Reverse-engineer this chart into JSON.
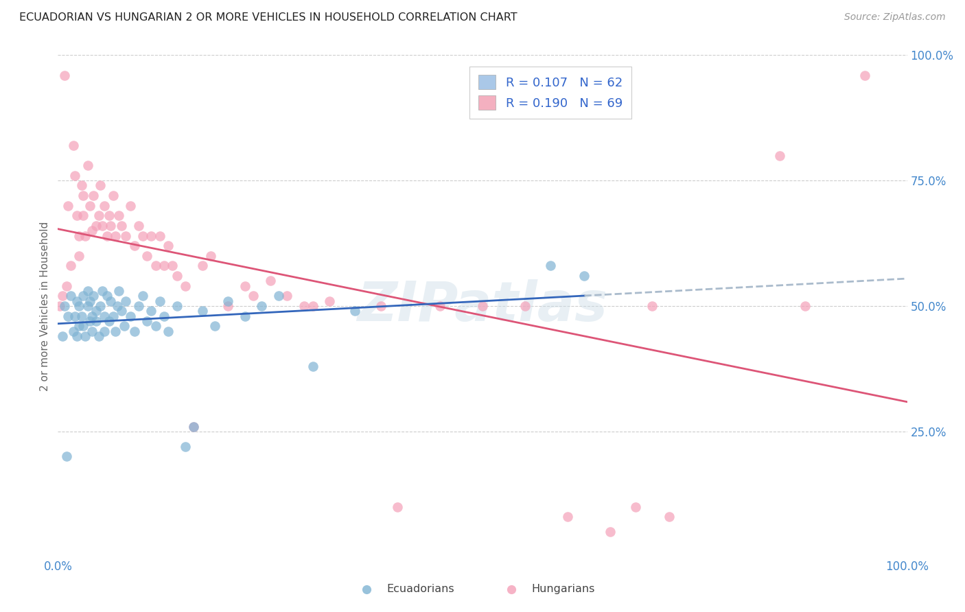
{
  "title": "ECUADORIAN VS HUNGARIAN 2 OR MORE VEHICLES IN HOUSEHOLD CORRELATION CHART",
  "source": "Source: ZipAtlas.com",
  "ylabel": "2 or more Vehicles in Household",
  "watermark": "ZIPatlas",
  "xlim": [
    0,
    1
  ],
  "ylim": [
    0,
    1
  ],
  "ytick_values": [
    0.0,
    0.25,
    0.5,
    0.75,
    1.0
  ],
  "ytick_labels": [
    "",
    "25.0%",
    "50.0%",
    "75.0%",
    "100.0%"
  ],
  "ecuadorian_color": "#7fb3d3",
  "hungarian_color": "#f4a0b8",
  "regression_blue_solid": "#3366bb",
  "regression_blue_dashed": "#aabbcc",
  "regression_pink_solid": "#dd5577",
  "grid_color": "#cccccc",
  "background_color": "#ffffff",
  "legend_blue_face": "#aac8e8",
  "legend_pink_face": "#f4b0c0",
  "legend_text_color": "#3366cc",
  "r_ecu": 0.107,
  "n_ecu": 62,
  "r_hun": 0.19,
  "n_hun": 69,
  "ecu_x": [
    0.005,
    0.008,
    0.01,
    0.012,
    0.015,
    0.018,
    0.02,
    0.022,
    0.022,
    0.025,
    0.025,
    0.028,
    0.03,
    0.03,
    0.032,
    0.035,
    0.035,
    0.038,
    0.038,
    0.04,
    0.04,
    0.042,
    0.045,
    0.045,
    0.048,
    0.05,
    0.052,
    0.055,
    0.055,
    0.058,
    0.06,
    0.062,
    0.065,
    0.068,
    0.07,
    0.072,
    0.075,
    0.078,
    0.08,
    0.085,
    0.09,
    0.095,
    0.1,
    0.105,
    0.11,
    0.115,
    0.12,
    0.125,
    0.13,
    0.14,
    0.15,
    0.16,
    0.17,
    0.185,
    0.2,
    0.22,
    0.24,
    0.26,
    0.3,
    0.35,
    0.58,
    0.62
  ],
  "ecu_y": [
    0.44,
    0.5,
    0.2,
    0.48,
    0.52,
    0.45,
    0.48,
    0.44,
    0.51,
    0.46,
    0.5,
    0.48,
    0.52,
    0.46,
    0.44,
    0.5,
    0.53,
    0.47,
    0.51,
    0.48,
    0.45,
    0.52,
    0.47,
    0.49,
    0.44,
    0.5,
    0.53,
    0.48,
    0.45,
    0.52,
    0.47,
    0.51,
    0.48,
    0.45,
    0.5,
    0.53,
    0.49,
    0.46,
    0.51,
    0.48,
    0.45,
    0.5,
    0.52,
    0.47,
    0.49,
    0.46,
    0.51,
    0.48,
    0.45,
    0.5,
    0.22,
    0.26,
    0.49,
    0.46,
    0.51,
    0.48,
    0.5,
    0.52,
    0.38,
    0.49,
    0.58,
    0.56
  ],
  "hun_x": [
    0.002,
    0.005,
    0.008,
    0.01,
    0.012,
    0.015,
    0.018,
    0.02,
    0.022,
    0.025,
    0.025,
    0.028,
    0.03,
    0.03,
    0.032,
    0.035,
    0.038,
    0.04,
    0.042,
    0.045,
    0.048,
    0.05,
    0.052,
    0.055,
    0.058,
    0.06,
    0.062,
    0.065,
    0.068,
    0.072,
    0.075,
    0.08,
    0.085,
    0.09,
    0.095,
    0.1,
    0.105,
    0.11,
    0.115,
    0.12,
    0.125,
    0.13,
    0.135,
    0.14,
    0.15,
    0.16,
    0.17,
    0.18,
    0.2,
    0.22,
    0.23,
    0.25,
    0.27,
    0.29,
    0.3,
    0.32,
    0.38,
    0.4,
    0.45,
    0.5,
    0.55,
    0.6,
    0.65,
    0.68,
    0.7,
    0.72,
    0.85,
    0.88,
    0.95
  ],
  "hun_y": [
    0.5,
    0.52,
    0.96,
    0.54,
    0.7,
    0.58,
    0.82,
    0.76,
    0.68,
    0.64,
    0.6,
    0.74,
    0.68,
    0.72,
    0.64,
    0.78,
    0.7,
    0.65,
    0.72,
    0.66,
    0.68,
    0.74,
    0.66,
    0.7,
    0.64,
    0.68,
    0.66,
    0.72,
    0.64,
    0.68,
    0.66,
    0.64,
    0.7,
    0.62,
    0.66,
    0.64,
    0.6,
    0.64,
    0.58,
    0.64,
    0.58,
    0.62,
    0.58,
    0.56,
    0.54,
    0.26,
    0.58,
    0.6,
    0.5,
    0.54,
    0.52,
    0.55,
    0.52,
    0.5,
    0.5,
    0.51,
    0.5,
    0.1,
    0.5,
    0.5,
    0.5,
    0.08,
    0.05,
    0.1,
    0.5,
    0.08,
    0.8,
    0.5,
    0.96
  ]
}
